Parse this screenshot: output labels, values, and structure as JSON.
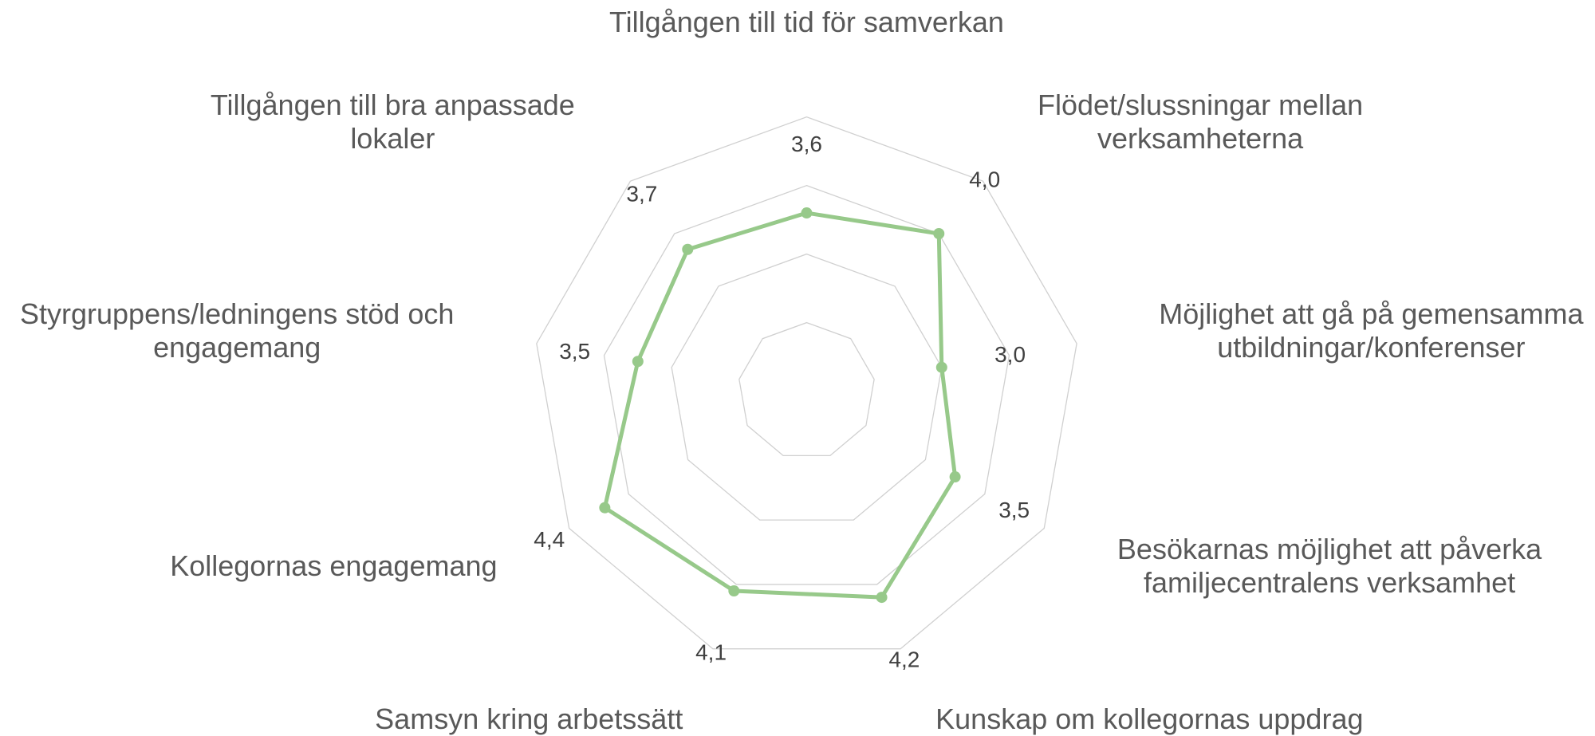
{
  "chart_data": {
    "type": "radar",
    "categories": [
      "Tillgången till tid för samverkan",
      "Flödet/slussningar mellan verksamheterna",
      "Möjlighet att gå på gemensamma utbildningar/konferenser",
      "Besökarnas möjlighet att påverka familjecentralens verksamhet",
      "Kunskap om kollegornas uppdrag",
      "Samsyn kring arbetssätt",
      "Kollegornas engagemang",
      "Styrgruppens/ledningens stöd och engagemang",
      "Tillgången till bra anpassade lokaler"
    ],
    "values": [
      3.6,
      4.0,
      3.0,
      3.5,
      4.2,
      4.1,
      4.4,
      3.5,
      3.7
    ],
    "value_labels": [
      "3,6",
      "4,0",
      "3,0",
      "3,5",
      "4,2",
      "4,1",
      "4,4",
      "3,5",
      "3,7"
    ],
    "color": "#97c98a",
    "ylim": [
      1,
      5
    ],
    "yticks": [
      2,
      3,
      4,
      5
    ],
    "grid": true
  }
}
